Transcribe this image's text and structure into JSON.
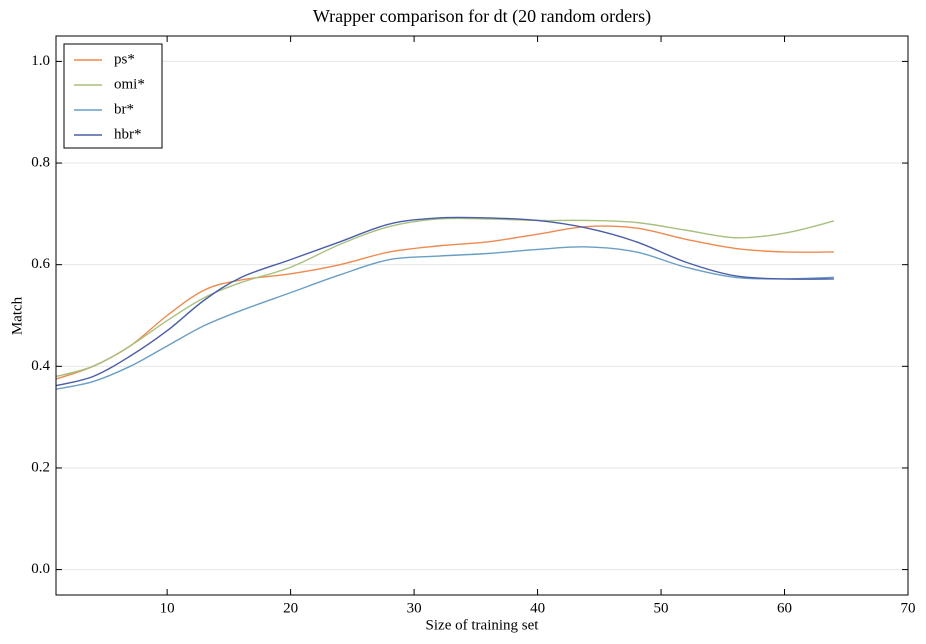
{
  "chart_data": {
    "type": "line",
    "title": "Wrapper comparison for dt (20 random orders)",
    "x_label": "Size of training set",
    "y_label": "Match",
    "x": [
      1,
      4,
      7,
      10,
      13,
      16,
      20,
      24,
      28,
      32,
      36,
      40,
      44,
      48,
      52,
      56,
      60,
      64
    ],
    "series": [
      {
        "name": "ps*",
        "color": "#ee8a4f",
        "values": [
          0.375,
          0.4,
          0.44,
          0.5,
          0.55,
          0.57,
          0.582,
          0.6,
          0.625,
          0.637,
          0.645,
          0.66,
          0.675,
          0.672,
          0.65,
          0.632,
          0.625,
          0.625
        ]
      },
      {
        "name": "omi*",
        "color": "#a9bf7f",
        "values": [
          0.38,
          0.4,
          0.44,
          0.49,
          0.535,
          0.565,
          0.595,
          0.64,
          0.675,
          0.69,
          0.69,
          0.687,
          0.687,
          0.683,
          0.668,
          0.653,
          0.662,
          0.686
        ]
      },
      {
        "name": "br*",
        "color": "#6a9ec5",
        "values": [
          0.355,
          0.37,
          0.4,
          0.44,
          0.48,
          0.51,
          0.545,
          0.58,
          0.61,
          0.617,
          0.622,
          0.63,
          0.635,
          0.625,
          0.595,
          0.575,
          0.572,
          0.575
        ]
      },
      {
        "name": "hbr*",
        "color": "#4a5ea8",
        "values": [
          0.362,
          0.38,
          0.42,
          0.47,
          0.53,
          0.575,
          0.61,
          0.645,
          0.68,
          0.692,
          0.692,
          0.687,
          0.672,
          0.645,
          0.605,
          0.578,
          0.572,
          0.572
        ]
      }
    ],
    "xlim": [
      1,
      70
    ],
    "xticks": [
      10,
      20,
      30,
      40,
      50,
      60,
      70
    ],
    "ylim": [
      -0.05,
      1.05
    ],
    "yticks": [
      {
        "value": 0,
        "label": "0.0"
      },
      0.2,
      0.4,
      0.6,
      0.8,
      {
        "value": 1,
        "label": "1.0"
      }
    ],
    "grid": true,
    "legend": "upper-left"
  }
}
